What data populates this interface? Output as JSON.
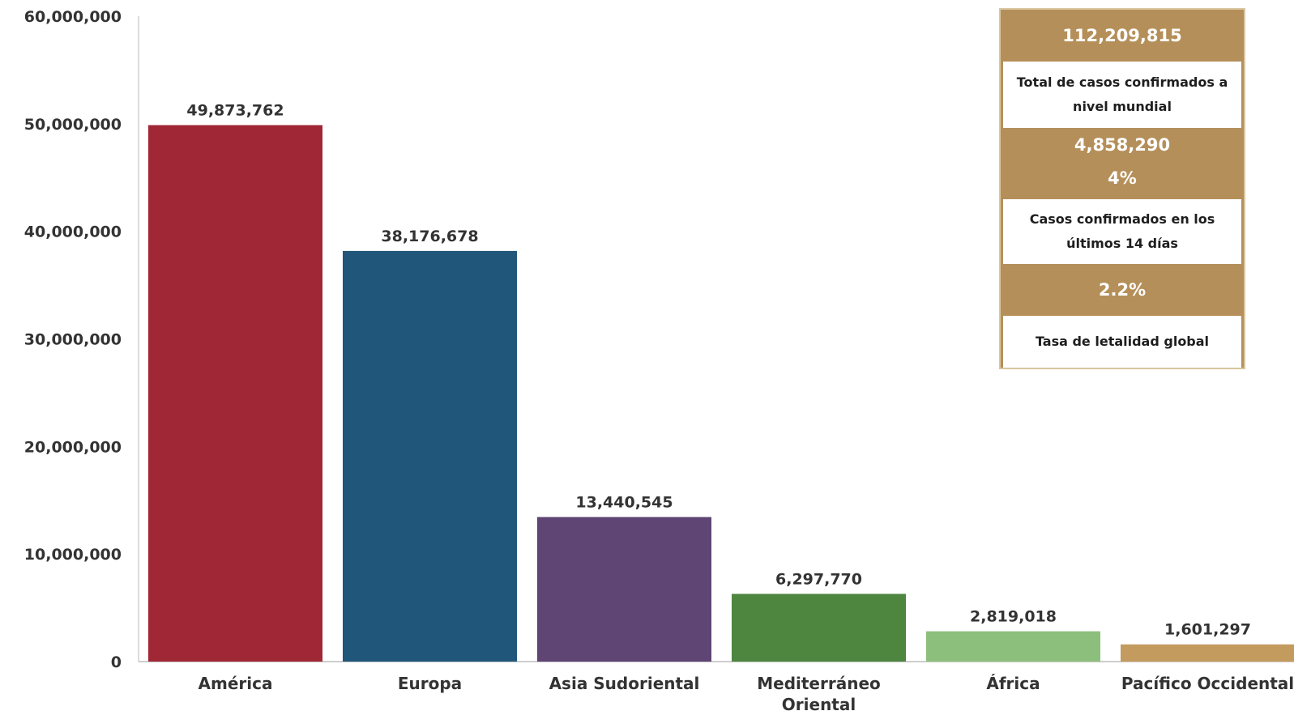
{
  "chart_data": {
    "type": "bar",
    "categories": [
      "América",
      "Europa",
      "Asia Sudoriental",
      "Mediterráneo Oriental",
      "África",
      "Pacífico Occidental"
    ],
    "category_lines": [
      [
        "América"
      ],
      [
        "Europa"
      ],
      [
        "Asia Sudoriental"
      ],
      [
        "Mediterráneo",
        "Oriental"
      ],
      [
        "África"
      ],
      [
        "Pacífico Occidental"
      ]
    ],
    "values": [
      49873762,
      38176678,
      13440545,
      6297770,
      2819018,
      1601297
    ],
    "value_labels": [
      "49,873,762",
      "38,176,678",
      "13,440,545",
      "6,297,770",
      "2,819,018",
      "1,601,297"
    ],
    "colors": [
      "#a02735",
      "#1f5679",
      "#5e4574",
      "#4e853f",
      "#8cbf7c",
      "#c39b5e"
    ],
    "ylim": [
      0,
      60000000
    ],
    "yticks": [
      0,
      10000000,
      20000000,
      30000000,
      40000000,
      50000000,
      60000000
    ],
    "ytick_labels": [
      "0",
      "10,000,000",
      "20,000,000",
      "30,000,000",
      "40,000,000",
      "50,000,000",
      "60,000,000"
    ],
    "title": "",
    "xlabel": "",
    "ylabel": "",
    "grid": false
  },
  "info_box": {
    "total_value": "112,209,815",
    "total_label": "Total de casos confirmados a nivel mundial",
    "recent_value": "4,858,290",
    "recent_percent": "4%",
    "recent_label": "Casos confirmados en los últimos 14 días",
    "lethality_value": "2.2%",
    "lethality_label": "Tasa de letalidad global",
    "accent_color": "#b58f59"
  }
}
